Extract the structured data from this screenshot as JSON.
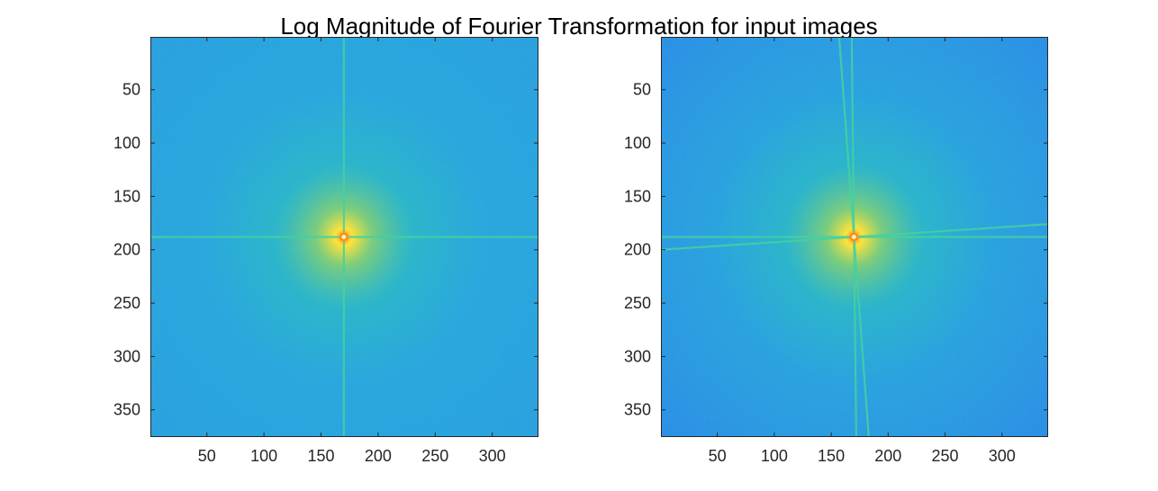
{
  "figure": {
    "title": "Log Magnitude of Fourier Transformation for input images"
  },
  "chart_data": [
    {
      "type": "heatmap",
      "title": "Log Magnitude of Fourier Transformation for input images",
      "xlabel": "",
      "ylabel": "",
      "xlim": [
        0.5,
        340.5
      ],
      "ylim": [
        0.5,
        375.5
      ],
      "y_reversed": true,
      "x_ticks": [
        50,
        100,
        150,
        200,
        250,
        300
      ],
      "y_ticks": [
        50,
        100,
        150,
        200,
        250,
        300,
        350
      ],
      "colormap": "parula",
      "grid": false,
      "features": {
        "peak_center": [
          170,
          188
        ],
        "lines": [
          {
            "from": [
              170,
              0.5
            ],
            "to": [
              170,
              375.5
            ]
          },
          {
            "from": [
              0.5,
              188
            ],
            "to": [
              340.5,
              188
            ]
          }
        ]
      }
    },
    {
      "type": "heatmap",
      "title": "",
      "xlabel": "",
      "ylabel": "",
      "xlim": [
        0.5,
        340.5
      ],
      "ylim": [
        0.5,
        375.5
      ],
      "y_reversed": true,
      "x_ticks": [
        50,
        100,
        150,
        200,
        250,
        300
      ],
      "y_ticks": [
        50,
        100,
        150,
        200,
        250,
        300,
        350
      ],
      "colormap": "parula",
      "grid": false,
      "features": {
        "peak_center": [
          170,
          188
        ],
        "lines": [
          {
            "from": [
              157,
              0.5
            ],
            "to": [
              183,
              375.5
            ]
          },
          {
            "from": [
              168,
              0.5
            ],
            "to": [
              172,
              375.5
            ]
          },
          {
            "from": [
              0.5,
              200
            ],
            "to": [
              340.5,
              176
            ]
          },
          {
            "from": [
              0.5,
              188
            ],
            "to": [
              340.5,
              188
            ]
          }
        ]
      }
    }
  ],
  "colors": {
    "background": "#2aa9dc",
    "background_dark": "#2f77ee",
    "mid": "#2fc4b6",
    "glow": "#8cd36a",
    "peak": "#ffe23b",
    "core": "#ff8a1e",
    "streak": "#46d0a0"
  }
}
